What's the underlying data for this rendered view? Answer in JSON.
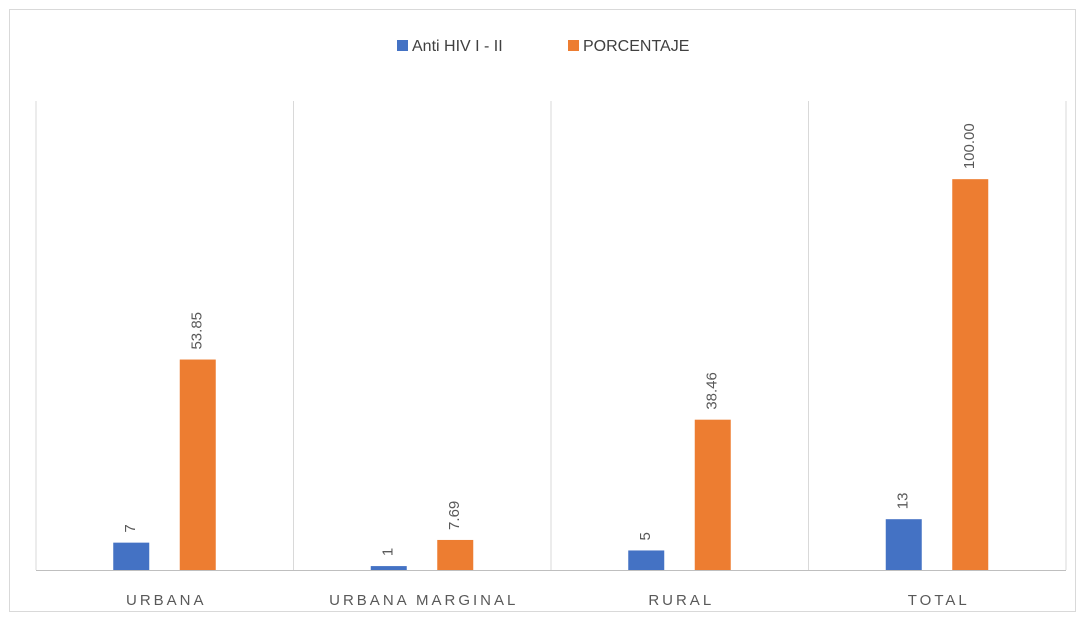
{
  "chart_data": {
    "type": "bar",
    "categories": [
      "URBANA",
      "URBANA MARGINAL",
      "RURAL",
      "TOTAL"
    ],
    "series": [
      {
        "name": "Anti HIV I - II",
        "color": "#4472c4",
        "values": [
          7,
          1,
          5,
          13
        ]
      },
      {
        "name": "PORCENTAJE",
        "color": "#ed7d31",
        "values": [
          53.85,
          7.69,
          38.46,
          100
        ],
        "value_labels": [
          "53.85",
          "7.69",
          "38.46",
          "100.00"
        ]
      }
    ],
    "ylim": [
      0,
      120
    ],
    "legend": "top"
  }
}
